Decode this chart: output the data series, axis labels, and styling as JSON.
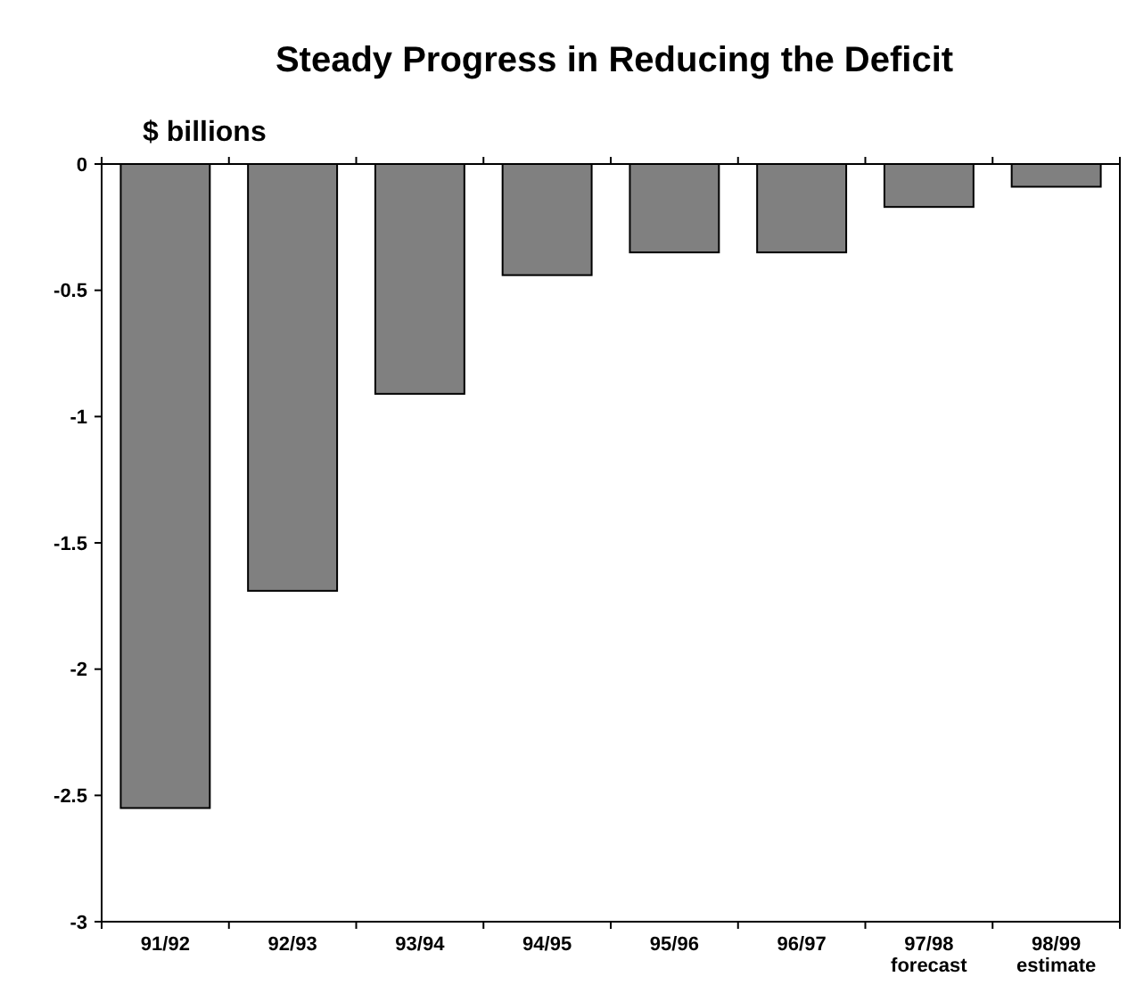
{
  "chart_data": {
    "type": "bar",
    "title": "Steady Progress in Reducing the Deficit",
    "ylabel": "$ billions",
    "categories": [
      "91/92",
      "92/93",
      "93/94",
      "94/95",
      "95/96",
      "96/97",
      "97/98\nforecast",
      "98/99\nestimate"
    ],
    "values": [
      -2.55,
      -1.69,
      -0.91,
      -0.44,
      -0.35,
      -0.35,
      -0.17,
      -0.09
    ],
    "color": "#808080",
    "ylim": [
      -3,
      0
    ],
    "yticks": [
      0,
      -0.5,
      -1,
      -1.5,
      -2,
      -2.5,
      -3
    ],
    "grid": false
  }
}
